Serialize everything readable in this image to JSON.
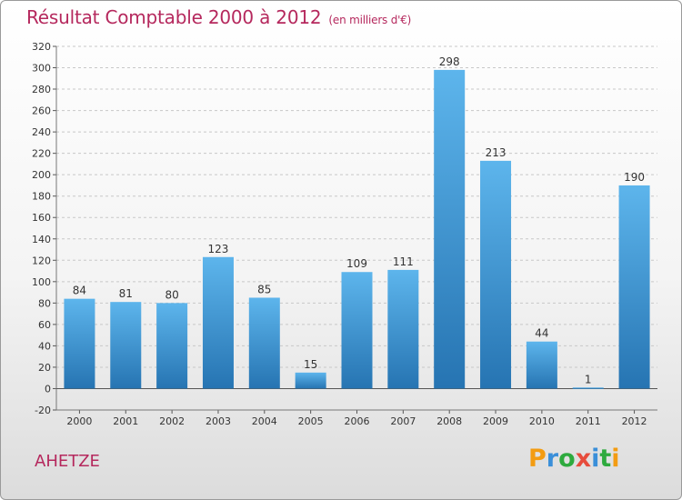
{
  "header": {
    "title": "Résultat Comptable 2000 à 2012",
    "subtitle": "(en milliers d'€)"
  },
  "place_label": "AHETZE",
  "logo": {
    "letters": [
      "P",
      "r",
      "o",
      "x",
      "i",
      "t",
      "i"
    ],
    "colors": [
      "#f39c12",
      "#3a8fd9",
      "#2eaa3e",
      "#e74c3c",
      "#3a8fd9",
      "#2eaa3e",
      "#f39c12"
    ]
  },
  "colors": {
    "bar_top": "#5db5ec",
    "bar_bottom": "#2674b2",
    "grid": "#c8c8c8",
    "title": "#b5285d"
  },
  "chart_data": {
    "type": "bar",
    "title": "Résultat Comptable 2000 à 2012",
    "ylabel": "en milliers d'€",
    "xlabel": "",
    "categories": [
      "2000",
      "2001",
      "2002",
      "2003",
      "2004",
      "2005",
      "2006",
      "2007",
      "2008",
      "2009",
      "2010",
      "2011",
      "2012"
    ],
    "values": [
      84,
      81,
      80,
      123,
      85,
      15,
      109,
      111,
      298,
      213,
      44,
      1,
      190
    ],
    "ylim": [
      -20,
      320
    ],
    "yticks": [
      -20,
      0,
      20,
      40,
      60,
      80,
      100,
      120,
      140,
      160,
      180,
      200,
      220,
      240,
      260,
      280,
      300,
      320
    ],
    "grid": true
  }
}
